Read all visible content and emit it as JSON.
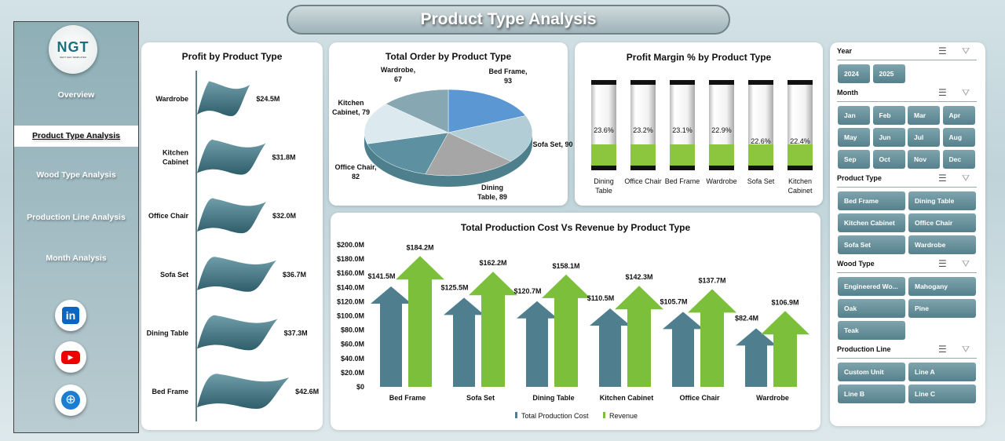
{
  "title": "Product Type Analysis",
  "logo": {
    "text": "NGT",
    "subtext": "NEXT GEN TEMPLATES"
  },
  "sidebar": {
    "items": [
      {
        "label": "Overview",
        "active": false
      },
      {
        "label": "Product Type Analysis",
        "active": true
      },
      {
        "label": "Wood Type Analysis",
        "active": false
      },
      {
        "label": "Production Line Analysis",
        "active": false
      },
      {
        "label": "Month Analysis",
        "active": false
      }
    ],
    "social": [
      "linkedin-icon",
      "youtube-icon",
      "globe-icon"
    ]
  },
  "profit_chart": {
    "title": "Profit by Product Type",
    "type": "bar",
    "categories": [
      "Wardrobe",
      "Kitchen Cabinet",
      "Office Chair",
      "Sofa Set",
      "Dining Table",
      "Bed Frame"
    ],
    "values": [
      24.5,
      31.8,
      32.0,
      36.7,
      37.3,
      42.6
    ],
    "labels": [
      "$24.5M",
      "$31.8M",
      "$32.0M",
      "$36.7M",
      "$37.3M",
      "$42.6M"
    ],
    "color": "#4f8593"
  },
  "order_chart": {
    "title": "Total Order by Product Type",
    "type": "pie",
    "slices": [
      {
        "name": "Bed Frame",
        "value": 93,
        "label": "Bed Frame, 93",
        "color": "#5b97d3"
      },
      {
        "name": "Sofa Set",
        "value": 90,
        "label": "Sofa Set, 90",
        "color": "#b3cdd7"
      },
      {
        "name": "Dining Table",
        "value": 89,
        "label": "Dining Table, 89",
        "color": "#a6a6a6"
      },
      {
        "name": "Office Chair",
        "value": 82,
        "label": "Office Chair, 82",
        "color": "#5d91a1"
      },
      {
        "name": "Kitchen Cabinet",
        "value": 79,
        "label": "Kitchen Cabinet, 79",
        "color": "#dce9ef"
      },
      {
        "name": "Wardrobe",
        "value": 67,
        "label": "Wardrobe, 67",
        "color": "#87a8b3"
      }
    ]
  },
  "margin_chart": {
    "title": "Profit Margin % by Product Type",
    "type": "bar",
    "categories": [
      "Dining Table",
      "Office Chair",
      "Bed Frame",
      "Wardrobe",
      "Sofa Set",
      "Kitchen Cabinet"
    ],
    "values": [
      23.6,
      23.2,
      23.1,
      22.9,
      22.6,
      22.4
    ],
    "labels": [
      "23.6%",
      "23.2%",
      "23.1%",
      "22.9%",
      "22.6%",
      "22.4%"
    ],
    "fill_color": "#8cc63f"
  },
  "chart_data": {
    "type": "bar",
    "title": "Total Production Cost Vs Revenue by Product Type",
    "categories": [
      "Bed Frame",
      "Sofa Set",
      "Dining Table",
      "Kitchen Cabinet",
      "Office Chair",
      "Wardrobe"
    ],
    "series": [
      {
        "name": "Total Production Cost",
        "values": [
          141.5,
          125.5,
          120.7,
          110.5,
          105.7,
          82.4
        ],
        "labels": [
          "$141.5M",
          "$125.5M",
          "$120.7M",
          "$110.5M",
          "$105.7M",
          "$82.4M"
        ],
        "color": "#4f7f8e"
      },
      {
        "name": "Revenue",
        "values": [
          184.2,
          162.2,
          158.1,
          142.3,
          137.7,
          106.9
        ],
        "labels": [
          "$184.2M",
          "$162.2M",
          "$158.1M",
          "$142.3M",
          "$137.7M",
          "$106.9M"
        ],
        "color": "#7bbf3a"
      }
    ],
    "ylim": [
      0,
      200
    ],
    "yticks": [
      "$0",
      "$20.0M",
      "$40.0M",
      "$60.0M",
      "$80.0M",
      "$100.0M",
      "$120.0M",
      "$140.0M",
      "$160.0M",
      "$180.0M",
      "$200.0M"
    ],
    "legend": "bottom",
    "grid": false
  },
  "slicers": [
    {
      "title": "Year",
      "items": [
        "2024",
        "2025"
      ],
      "cols": 4
    },
    {
      "title": "Month",
      "items": [
        "Jan",
        "Feb",
        "Mar",
        "Apr",
        "May",
        "Jun",
        "Jul",
        "Aug",
        "Sep",
        "Oct",
        "Nov",
        "Dec"
      ],
      "cols": 4
    },
    {
      "title": "Product Type",
      "items": [
        "Bed Frame",
        "Dining Table",
        "Kitchen Cabinet",
        "Office Chair",
        "Sofa Set",
        "Wardrobe"
      ],
      "cols": 2
    },
    {
      "title": "Wood Type",
      "items": [
        "Engineered Wo...",
        "Mahogany",
        "Oak",
        "Pine",
        "Teak"
      ],
      "cols": 2
    },
    {
      "title": "Production Line",
      "items": [
        "Custom Unit",
        "Line A",
        "Line B",
        "Line C"
      ],
      "cols": 2
    }
  ]
}
